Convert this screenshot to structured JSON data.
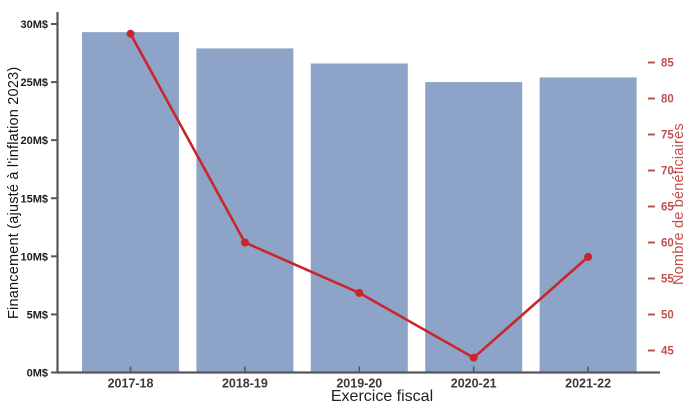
{
  "chart_data": {
    "type": "combo",
    "title": "",
    "categories": [
      "2017-18",
      "2018-19",
      "2019-20",
      "2020-21",
      "2021-22"
    ],
    "series": [
      {
        "name": "Financement (ajusté à l'inflation 2023)",
        "type": "bar",
        "axis": "left",
        "unit": "M$",
        "color": "#8da4c8",
        "values": [
          29.3,
          27.9,
          26.6,
          25.0,
          25.4
        ]
      },
      {
        "name": "Nombre de bénéficiaires",
        "type": "line",
        "axis": "right",
        "color": "#c9262c",
        "values": [
          89,
          60,
          53,
          44,
          58
        ]
      }
    ],
    "xlabel": "Exercice fiscal",
    "left_axis": {
      "label": "Financement (ajusté à l'inflation 2023)",
      "tick_labels": [
        "0M$",
        "5M$",
        "10M$",
        "15M$",
        "20M$",
        "25M$",
        "30M$"
      ],
      "tick_values": [
        0,
        5,
        10,
        15,
        20,
        25,
        30
      ],
      "min": 0,
      "max": 30,
      "tick_color": "#1c1c1c"
    },
    "right_axis": {
      "label": "Nombre de bénéficiaires",
      "tick_labels": [
        "45",
        "50",
        "55",
        "60",
        "65",
        "70",
        "75",
        "80",
        "85"
      ],
      "tick_values": [
        45,
        50,
        55,
        60,
        65,
        70,
        75,
        80,
        85
      ],
      "min": 45,
      "max": 85,
      "tick_color": "#c0504d"
    },
    "grid": false,
    "legend": "none",
    "spine_color": "#57575a"
  }
}
